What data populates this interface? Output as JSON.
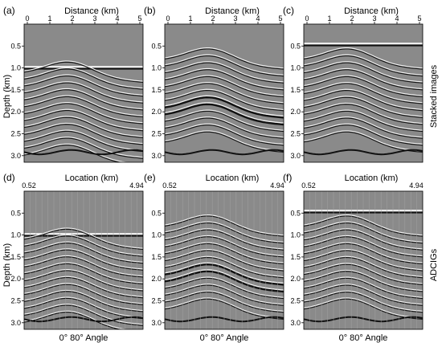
{
  "figure": {
    "panels": [
      {
        "letter": "(a)",
        "row": 0,
        "col": 0,
        "reflector_top": true
      },
      {
        "letter": "(b)",
        "row": 0,
        "col": 1,
        "reflector_top": false
      },
      {
        "letter": "(c)",
        "row": 0,
        "col": 2,
        "reflector_top": true
      },
      {
        "letter": "(d)",
        "row": 1,
        "col": 0,
        "reflector_top": true
      },
      {
        "letter": "(e)",
        "row": 1,
        "col": 1,
        "reflector_top": false
      },
      {
        "letter": "(f)",
        "row": 1,
        "col": 2,
        "reflector_top": true
      }
    ],
    "top_row": {
      "x_title": "Distance (km)",
      "x_ticks": [
        "0",
        "1",
        "2",
        "3",
        "4",
        "5"
      ],
      "y_ticks": [
        "0.5",
        "1.0",
        "1.5",
        "2.0",
        "2.5",
        "3.0"
      ],
      "side_label": "Stacked images"
    },
    "bottom_row": {
      "x_title": "Location (km)",
      "x_ticks": [
        "0.52",
        "4.94"
      ],
      "y_ticks": [
        "0.5",
        "1.0",
        "1.5",
        "2.0",
        "2.5",
        "3.0"
      ],
      "side_label": "ADCIGs",
      "angle_label": "0° 80° Angle"
    },
    "y_title": "Depth (km)",
    "colors": {
      "background": "#8a8a8a",
      "dark": "#111111",
      "light": "#f4f4f4"
    }
  }
}
